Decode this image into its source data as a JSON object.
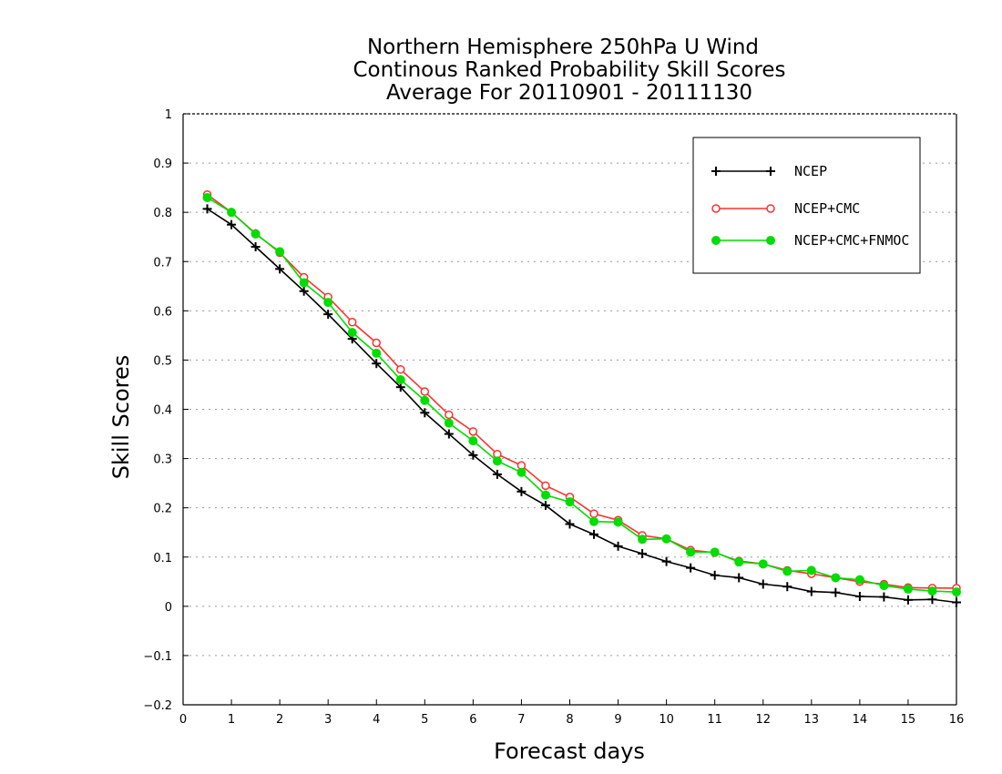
{
  "chart_data": {
    "type": "line",
    "title": [
      "Northern Hemisphere 250hPa U Wind",
      "Continous Ranked Probability Skill Scores",
      "Average For 20110901 - 20111130"
    ],
    "xlabel": "Forecast days",
    "ylabel": "Skill Scores",
    "xlim": [
      0,
      16
    ],
    "ylim": [
      -0.2,
      1
    ],
    "x_ticks": [
      0,
      1,
      2,
      3,
      4,
      5,
      6,
      7,
      8,
      9,
      10,
      11,
      12,
      13,
      14,
      15,
      16
    ],
    "x_tick_labels": [
      "0",
      "1",
      "2",
      "3",
      "4",
      "5",
      "6",
      "7",
      "8",
      "9",
      "10",
      "11",
      "12",
      "13",
      "14",
      "15",
      "16"
    ],
    "y_ticks": [
      -0.2,
      -0.1,
      0,
      0.1,
      0.2,
      0.3,
      0.4,
      0.5,
      0.6,
      0.7,
      0.8,
      0.9,
      1
    ],
    "y_tick_labels": [
      "−0.2",
      "−0.1",
      "0",
      "0.1",
      "0.2",
      "0.3",
      "0.4",
      "0.5",
      "0.6",
      "0.7",
      "0.8",
      "0.9",
      "1"
    ],
    "grid": "horizontal dotted",
    "legend_position": "top-right",
    "x": [
      0.5,
      1,
      1.5,
      2,
      2.5,
      3,
      3.5,
      4,
      4.5,
      5,
      5.5,
      6,
      6.5,
      7,
      7.5,
      8,
      8.5,
      9,
      9.5,
      10,
      10.5,
      11,
      11.5,
      12,
      12.5,
      13,
      13.5,
      14,
      14.5,
      15,
      15.5,
      16
    ],
    "series": [
      {
        "name": "NCEP",
        "color": "#000000",
        "marker": "plus",
        "values": [
          0.807,
          0.775,
          0.73,
          0.685,
          0.64,
          0.593,
          0.543,
          0.493,
          0.445,
          0.393,
          0.35,
          0.307,
          0.268,
          0.233,
          0.205,
          0.167,
          0.146,
          0.122,
          0.107,
          0.091,
          0.078,
          0.063,
          0.058,
          0.045,
          0.04,
          0.03,
          0.028,
          0.02,
          0.019,
          0.013,
          0.014,
          0.008
        ]
      },
      {
        "name": "NCEP+CMC",
        "color": "#ff3030",
        "marker": "open-circle",
        "values": [
          0.836,
          0.8,
          0.757,
          0.718,
          0.668,
          0.628,
          0.577,
          0.535,
          0.481,
          0.436,
          0.389,
          0.355,
          0.309,
          0.286,
          0.245,
          0.222,
          0.188,
          0.175,
          0.144,
          0.137,
          0.114,
          0.109,
          0.092,
          0.086,
          0.073,
          0.066,
          0.058,
          0.05,
          0.045,
          0.038,
          0.037,
          0.037
        ]
      },
      {
        "name": "NCEP+CMC+FNMOC",
        "color": "#00dd00",
        "marker": "filled-circle",
        "values": [
          0.83,
          0.8,
          0.756,
          0.72,
          0.657,
          0.617,
          0.556,
          0.514,
          0.46,
          0.418,
          0.372,
          0.336,
          0.295,
          0.272,
          0.226,
          0.212,
          0.172,
          0.171,
          0.136,
          0.137,
          0.11,
          0.11,
          0.09,
          0.086,
          0.071,
          0.073,
          0.058,
          0.054,
          0.042,
          0.035,
          0.031,
          0.029
        ]
      }
    ]
  }
}
